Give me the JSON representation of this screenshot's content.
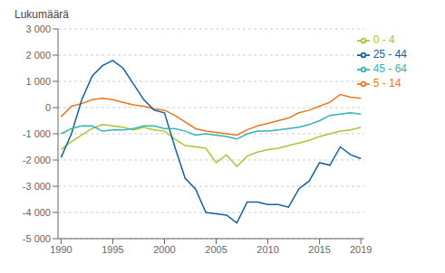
{
  "chart_data": {
    "type": "line",
    "y_label": "Lukumäärä",
    "x": [
      1990,
      1991,
      1992,
      1993,
      1994,
      1995,
      1996,
      1997,
      1998,
      1999,
      2000,
      2001,
      2002,
      2003,
      2004,
      2005,
      2006,
      2007,
      2008,
      2009,
      2010,
      2011,
      2012,
      2013,
      2014,
      2015,
      2016,
      2017,
      2018,
      2019
    ],
    "series": [
      {
        "name": "0 - 4",
        "color": "#a8c832",
        "values": [
          -1600,
          -1300,
          -1050,
          -800,
          -650,
          -700,
          -750,
          -850,
          -750,
          -850,
          -900,
          -1200,
          -1450,
          -1500,
          -1550,
          -2100,
          -1800,
          -2250,
          -1850,
          -1700,
          -1600,
          -1550,
          -1450,
          -1350,
          -1250,
          -1100,
          -1000,
          -900,
          -850,
          -750
        ]
      },
      {
        "name": "5 - 14",
        "color": "#e87820",
        "values": [
          -350,
          50,
          150,
          300,
          350,
          300,
          200,
          100,
          50,
          -50,
          -100,
          -300,
          -550,
          -800,
          -900,
          -950,
          -1000,
          -1050,
          -850,
          -700,
          -600,
          -500,
          -400,
          -200,
          -100,
          50,
          200,
          500,
          400,
          350
        ]
      },
      {
        "name": "25 - 44",
        "color": "#1460a0",
        "values": [
          -1900,
          -1000,
          300,
          1200,
          1600,
          1800,
          1500,
          900,
          300,
          -100,
          -200,
          -1500,
          -2700,
          -3100,
          -4000,
          -4050,
          -4100,
          -4400,
          -3600,
          -3600,
          -3700,
          -3700,
          -3800,
          -3100,
          -2800,
          -2100,
          -2200,
          -1500,
          -1800,
          -1950
        ]
      },
      {
        "name": "45 - 64",
        "color": "#32b4b4",
        "values": [
          -1000,
          -800,
          -700,
          -700,
          -900,
          -850,
          -850,
          -800,
          -700,
          -700,
          -800,
          -800,
          -900,
          -1050,
          -1000,
          -1050,
          -1100,
          -1200,
          -1000,
          -900,
          -900,
          -850,
          -800,
          -750,
          -650,
          -500,
          -300,
          -250,
          -200,
          -250
        ]
      }
    ],
    "xlim": [
      1989.7,
      2019.3
    ],
    "xticks": [
      1990,
      1995,
      2000,
      2005,
      2010,
      2015,
      2019
    ],
    "ylim": [
      -5000,
      3000
    ],
    "yticks": [
      {
        "value": -5000,
        "label": "-5 000"
      },
      {
        "value": -4000,
        "label": "-4 000"
      },
      {
        "value": -3000,
        "label": "-3 000"
      },
      {
        "value": -2000,
        "label": "-2 000"
      },
      {
        "value": -1000,
        "label": "-1 000"
      },
      0,
      {
        "value": 1000,
        "label": "1 000"
      },
      {
        "value": 2000,
        "label": "2 000"
      },
      {
        "value": 3000,
        "label": "3 000"
      }
    ],
    "grid": true,
    "legend": "upper right"
  }
}
